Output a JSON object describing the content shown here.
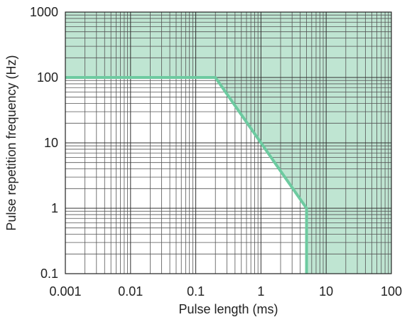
{
  "chart_data": {
    "type": "area",
    "title": "",
    "xlabel": "Pulse length (ms)",
    "ylabel": "Pulse repetition frequency (Hz)",
    "x_scale": "log",
    "y_scale": "log",
    "xlim": [
      0.001,
      100
    ],
    "ylim": [
      0.1,
      1000
    ],
    "x_ticks": [
      {
        "value": 0.001,
        "label": "0.001"
      },
      {
        "value": 0.01,
        "label": "0.01"
      },
      {
        "value": 0.1,
        "label": "0.1"
      },
      {
        "value": 1,
        "label": "1"
      },
      {
        "value": 10,
        "label": "10"
      },
      {
        "value": 100,
        "label": "100"
      }
    ],
    "y_ticks": [
      {
        "value": 0.1,
        "label": "0.1"
      },
      {
        "value": 1,
        "label": "1"
      },
      {
        "value": 10,
        "label": "10"
      },
      {
        "value": 100,
        "label": "100"
      },
      {
        "value": 1000,
        "label": "1000"
      }
    ],
    "grid": true,
    "boundary": {
      "x": [
        0.001,
        0.2,
        5,
        5
      ],
      "y": [
        100,
        100,
        1,
        0.1
      ]
    },
    "shaded_region": "above-right of boundary",
    "colors": {
      "boundary": "#6dcaa0",
      "fill": "#bfe5d2",
      "grid": "#555555",
      "frame": "#222222"
    }
  }
}
